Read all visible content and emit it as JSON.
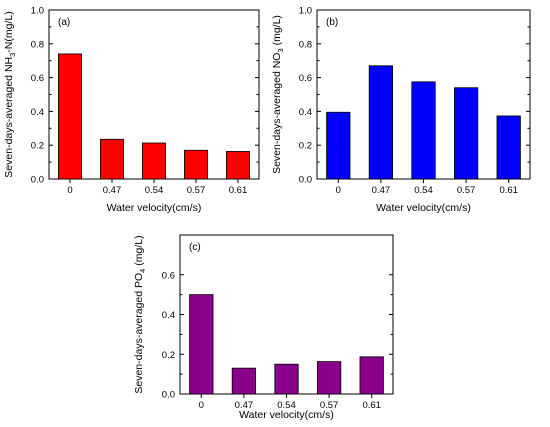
{
  "chart_data": [
    {
      "type": "bar",
      "panel_label": "(a)",
      "categories": [
        "0",
        "0.47",
        "0.54",
        "0.57",
        "0.61"
      ],
      "values": [
        0.74,
        0.235,
        0.213,
        0.17,
        0.163
      ],
      "xlabel": "Water velocity(cm/s)",
      "ylabel": "Seven-days-averaged NH₃-N(mg/L)",
      "ylabel_parts": [
        "Seven-days-averaged NH",
        "3",
        "-N(mg/L)"
      ],
      "ylim": [
        0,
        1.0
      ],
      "yticks": [
        "0.0",
        "0.2",
        "0.4",
        "0.6",
        "0.8",
        "1.0"
      ],
      "bar_color": "#ff0000",
      "grid": false
    },
    {
      "type": "bar",
      "panel_label": "(b)",
      "categories": [
        "0",
        "0.47",
        "0.54",
        "0.57",
        "0.61"
      ],
      "values": [
        0.395,
        0.67,
        0.575,
        0.54,
        0.373
      ],
      "xlabel": "Water velocity(cm/s)",
      "ylabel": "Seven-days-averaged NO₃ (mg/L)",
      "ylabel_parts": [
        "Seven-days-averaged NO",
        "3",
        " (mg/L)"
      ],
      "ylim": [
        0,
        1.0
      ],
      "yticks": [
        "0.0",
        "0.2",
        "0.4",
        "0.6",
        "0.8",
        "1.0"
      ],
      "bar_color": "#0000ff",
      "grid": false
    },
    {
      "type": "bar",
      "panel_label": "(c)",
      "categories": [
        "0",
        "0.47",
        "0.54",
        "0.57",
        "0.61"
      ],
      "values": [
        0.5,
        0.13,
        0.15,
        0.163,
        0.187
      ],
      "xlabel": "Water velocity(cm/s)",
      "ylabel": "Seven-days-averaged PO₄ (mg/L)",
      "ylabel_parts": [
        "Seven-days-averaged PO",
        "4",
        " (mg/L)"
      ],
      "ylim": [
        0,
        0.8
      ],
      "yticks": [
        "0.0",
        "0.2",
        "0.4",
        "0.6"
      ],
      "bar_color": "#8b008b",
      "grid": false
    }
  ]
}
